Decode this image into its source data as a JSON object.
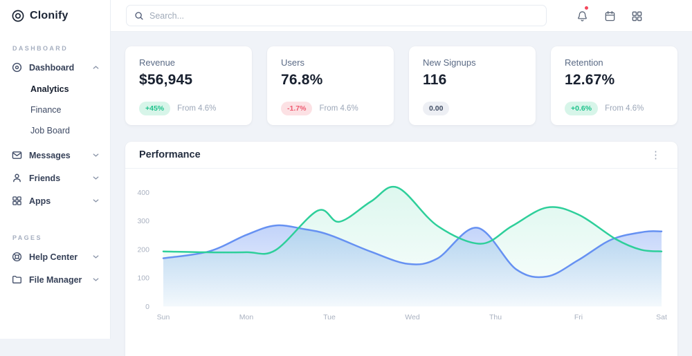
{
  "brand": {
    "name": "Clonify"
  },
  "topbar": {
    "search_placeholder": "Search..."
  },
  "sidebar": {
    "sections": [
      {
        "label": "DASHBOARD",
        "items": [
          {
            "label": "Dashboard",
            "icon": "disc-icon",
            "expanded": true,
            "children": [
              "Analytics",
              "Finance",
              "Job Board"
            ],
            "active_child": "Analytics"
          },
          {
            "label": "Messages",
            "icon": "mail-icon"
          },
          {
            "label": "Friends",
            "icon": "user-icon"
          },
          {
            "label": "Apps",
            "icon": "grid-icon"
          }
        ]
      },
      {
        "label": "PAGES",
        "items": [
          {
            "label": "Help Center",
            "icon": "lifebuoy-icon"
          },
          {
            "label": "File Manager",
            "icon": "folder-icon"
          }
        ]
      }
    ]
  },
  "stat_cards": [
    {
      "title": "Revenue",
      "value": "$56,945",
      "badge": "+45%",
      "badge_type": "positive",
      "note": "From 4.6%"
    },
    {
      "title": "Users",
      "value": "76.8%",
      "badge": "-1.7%",
      "badge_type": "negative",
      "note": "From 4.6%"
    },
    {
      "title": "New Signups",
      "value": "116",
      "badge": "0.00",
      "badge_type": "neutral",
      "note": ""
    },
    {
      "title": "Retention",
      "value": "12.67%",
      "badge": "+0.6%",
      "badge_type": "positive",
      "note": "From 4.6%"
    }
  ],
  "chart_card": {
    "title": "Performance"
  },
  "chart_data": {
    "type": "area",
    "title": "Performance",
    "categories": [
      "Sun",
      "Mon",
      "Tue",
      "Wed",
      "Thu",
      "Fri",
      "Sat"
    ],
    "yticks": [
      0,
      100,
      200,
      300,
      400
    ],
    "ylim": [
      0,
      440
    ],
    "grid": false,
    "legend": "none",
    "series": [
      {
        "name": "series-blue",
        "color": "#6691f2",
        "points": [
          [
            0,
            169
          ],
          [
            0.55,
            193
          ],
          [
            1.0,
            251
          ],
          [
            1.35,
            284
          ],
          [
            1.7,
            271
          ],
          [
            2.0,
            251
          ],
          [
            2.5,
            192
          ],
          [
            2.95,
            149
          ],
          [
            3.3,
            168
          ],
          [
            3.78,
            276
          ],
          [
            4.25,
            130
          ],
          [
            4.62,
            105
          ],
          [
            5.0,
            163
          ],
          [
            5.4,
            235
          ],
          [
            5.8,
            262
          ],
          [
            6,
            263
          ]
        ]
      },
      {
        "name": "series-green",
        "color": "#2ecf9a",
        "points": [
          [
            0,
            193
          ],
          [
            0.5,
            190
          ],
          [
            1,
            190
          ],
          [
            1.35,
            197
          ],
          [
            1.86,
            336
          ],
          [
            2.12,
            297
          ],
          [
            2.5,
            368
          ],
          [
            2.82,
            417
          ],
          [
            3.3,
            283
          ],
          [
            3.82,
            220
          ],
          [
            4.2,
            282
          ],
          [
            4.62,
            347
          ],
          [
            5.0,
            322
          ],
          [
            5.45,
            236
          ],
          [
            5.75,
            199
          ],
          [
            6,
            193
          ]
        ]
      }
    ]
  },
  "colors": {
    "accent_green": "#2ecf9a",
    "accent_blue": "#6691f2",
    "badge_positive": "#1ec28b",
    "badge_negative": "#ee5b71",
    "notification_red": "#f4485d",
    "status_online": "#2fc98c"
  }
}
